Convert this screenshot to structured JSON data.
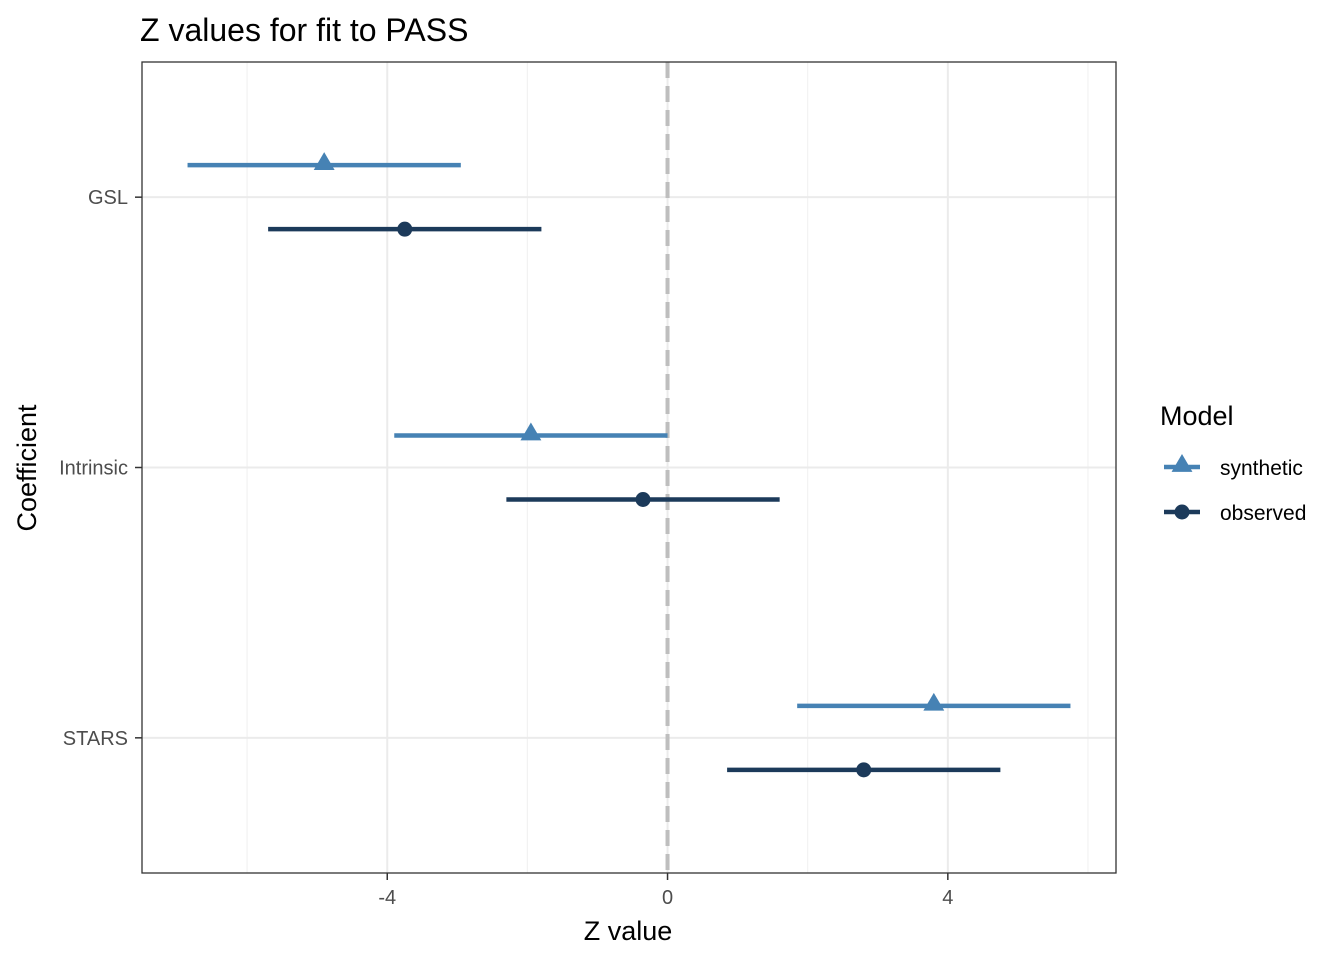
{
  "chart_data": {
    "type": "scatter",
    "subtype": "coefficient-interval-plot",
    "title": "Z values for fit to PASS",
    "xlabel": "Z value",
    "ylabel": "Coefficient",
    "categories": [
      "GSL",
      "Intrinsic",
      "STARS"
    ],
    "xlim": [
      -7.5,
      6.4
    ],
    "x_ticks": [
      -4,
      0,
      4
    ],
    "x_tick_labels": [
      "-4",
      "0",
      "4"
    ],
    "reference_line": {
      "x": 0,
      "style": "dashed",
      "color": "#bebebe"
    },
    "grid": true,
    "legend": {
      "title": "Model",
      "position": "right"
    },
    "series": [
      {
        "name": "synthetic",
        "color": "#4682b4",
        "marker": "triangle",
        "points": [
          {
            "category": "GSL",
            "estimate": -4.9,
            "low": -6.85,
            "high": -2.95
          },
          {
            "category": "Intrinsic",
            "estimate": -1.95,
            "low": -3.9,
            "high": 0.0
          },
          {
            "category": "STARS",
            "estimate": 3.8,
            "low": 1.85,
            "high": 5.75
          }
        ]
      },
      {
        "name": "observed",
        "color": "#1c3a5a",
        "marker": "circle",
        "points": [
          {
            "category": "GSL",
            "estimate": -3.75,
            "low": -5.7,
            "high": -1.8
          },
          {
            "category": "Intrinsic",
            "estimate": -0.35,
            "low": -2.3,
            "high": 1.6
          },
          {
            "category": "STARS",
            "estimate": 2.8,
            "low": 0.85,
            "high": 4.75
          }
        ]
      }
    ]
  }
}
